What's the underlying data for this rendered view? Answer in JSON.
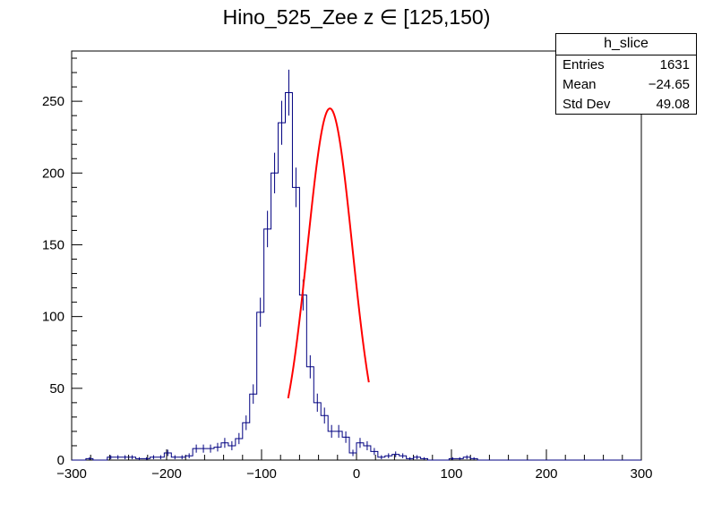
{
  "chart_data": {
    "type": "histogram",
    "title": "Hino_525_Zee z  ∈ [125,150)",
    "xlabel": "",
    "ylabel": "",
    "xlim": [
      -300,
      300
    ],
    "ylim": [
      0,
      285
    ],
    "x_ticks": [
      -300,
      -200,
      -100,
      0,
      100,
      200,
      300
    ],
    "y_ticks": [
      0,
      50,
      100,
      150,
      200,
      250
    ],
    "grid": false,
    "bin_width": 7.5,
    "bin_centers": [
      -296.25,
      -288.75,
      -281.25,
      -273.75,
      -266.25,
      -258.75,
      -251.25,
      -243.75,
      -236.25,
      -228.75,
      -221.25,
      -213.75,
      -206.25,
      -198.75,
      -191.25,
      -183.75,
      -176.25,
      -168.75,
      -161.25,
      -153.75,
      -146.25,
      -138.75,
      -131.25,
      -123.75,
      -116.25,
      -108.75,
      -101.25,
      -93.75,
      -86.25,
      -78.75,
      -71.25,
      -63.75,
      -56.25,
      -48.75,
      -41.25,
      -33.75,
      -26.25,
      -18.75,
      -11.25,
      -3.75,
      3.75,
      11.25,
      18.75,
      26.25,
      33.75,
      41.25,
      48.75,
      56.25,
      63.75,
      71.25,
      78.75,
      86.25,
      93.75,
      101.25,
      108.75,
      116.25,
      123.75,
      131.25,
      138.75,
      146.25,
      153.75,
      161.25,
      168.75,
      176.25,
      183.75,
      191.25,
      198.75,
      206.25,
      213.75,
      221.25,
      228.75,
      236.25,
      243.75,
      251.25,
      258.75,
      266.25,
      273.75,
      281.25,
      288.75,
      296.25
    ],
    "series": [
      {
        "type": "histogram",
        "color": "#000080",
        "values": [
          0,
          0,
          1,
          0,
          0,
          2,
          2,
          2,
          2,
          1,
          1,
          2,
          2,
          5,
          2,
          2,
          3,
          8,
          8,
          8,
          9,
          12,
          10,
          15,
          26,
          46,
          103,
          161,
          200,
          235,
          256,
          190,
          115,
          65,
          40,
          31,
          20,
          20,
          16,
          5,
          12,
          10,
          6,
          2,
          3,
          4,
          3,
          1,
          2,
          1,
          0,
          0,
          0,
          1,
          1,
          2,
          1,
          0,
          0,
          0,
          0,
          0,
          0,
          0,
          0,
          0,
          0,
          0,
          0,
          0,
          0,
          0,
          0,
          0,
          0,
          0,
          0,
          0,
          0,
          0
        ],
        "bin_centers_values_aligned_start": -296.25
      },
      {
        "type": "line",
        "color": "#ff0000",
        "fit": "gaussian",
        "x_range": [
          -72,
          13
        ],
        "amplitude": 245,
        "mean": -28,
        "sigma": 23.6
      }
    ]
  },
  "stats": {
    "name": "h_slice",
    "rows": [
      {
        "label": "Entries",
        "value": "1631"
      },
      {
        "label": "Mean",
        "value": "−24.65"
      },
      {
        "label": "Std Dev",
        "value": "49.08"
      }
    ]
  },
  "colors": {
    "histogram": "#000080",
    "fit": "#ff0000",
    "axis": "#000000"
  }
}
